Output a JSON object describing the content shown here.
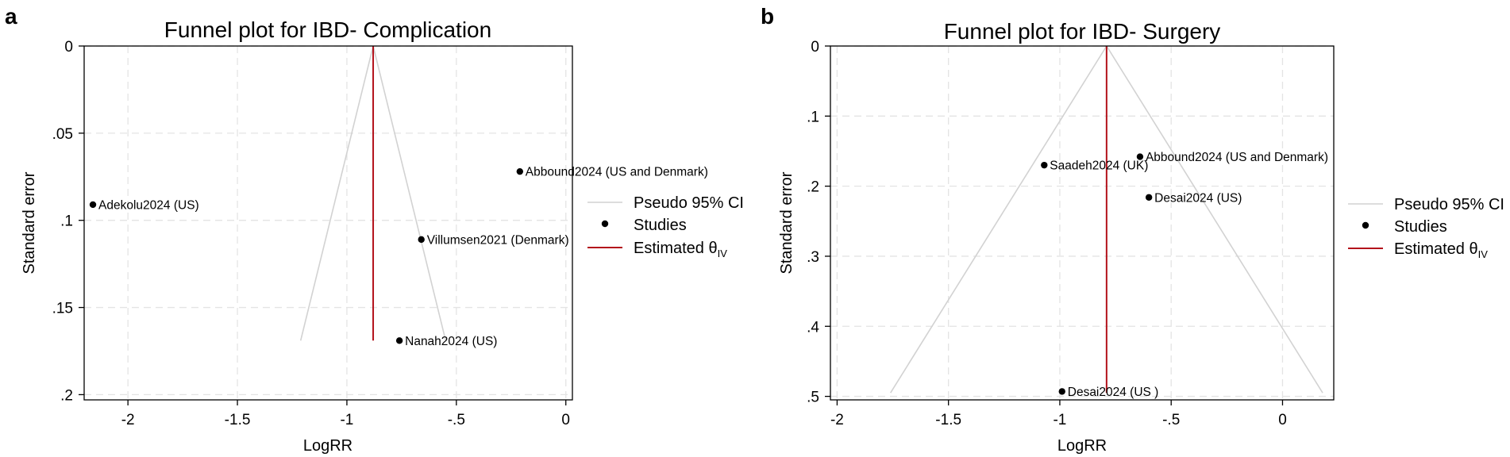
{
  "panels": [
    {
      "letter": "a",
      "colors": {
        "pseudo_ci": "#d2d2d2",
        "studies": "#000000",
        "estimate": "#b3121b"
      },
      "legend": {
        "placement": "right",
        "entries": [
          "Pseudo 95% CI",
          "Studies",
          "Estimated θ",
          "IV"
        ]
      },
      "chart_data": {
        "type": "scatter",
        "title": "Funnel plot for IBD- Complication",
        "xlabel": "LogRR",
        "ylabel": "Standard error",
        "xlim": [
          -2.2,
          0.03
        ],
        "ylim": [
          0,
          0.203
        ],
        "y_reversed": true,
        "grid": true,
        "x_ticks": [
          -2,
          -1.5,
          -1,
          -0.5,
          0
        ],
        "x_tick_labels": [
          "-2",
          "-1.5",
          "-1",
          "-.5",
          "0"
        ],
        "y_ticks": [
          0,
          0.05,
          0.1,
          0.15,
          0.2
        ],
        "y_tick_labels": [
          "0",
          ".05",
          ".1",
          ".15",
          ".2"
        ],
        "estimate": {
          "x": -0.88,
          "se_max": 0.169
        },
        "pseudo_ci": {
          "apex_x": -0.88,
          "se_max": 0.169
        },
        "studies": [
          {
            "label": "Abbound2024 (US and Denmark)",
            "x": -0.21,
            "se": 0.072
          },
          {
            "label": "Adekolu2024 (US)",
            "x": -2.16,
            "se": 0.091
          },
          {
            "label": "Villumsen2021 (Denmark)",
            "x": -0.66,
            "se": 0.111
          },
          {
            "label": "Nanah2024 (US)",
            "x": -0.76,
            "se": 0.169
          }
        ]
      }
    },
    {
      "letter": "b",
      "colors": {
        "pseudo_ci": "#d2d2d2",
        "studies": "#000000",
        "estimate": "#b3121b"
      },
      "legend": {
        "placement": "right",
        "entries": [
          "Pseudo 95% CI",
          "Studies",
          "Estimated θ",
          "IV"
        ]
      },
      "chart_data": {
        "type": "scatter",
        "title": "Funnel plot for IBD- Surgery",
        "xlabel": "LogRR",
        "ylabel": "Standard error",
        "xlim": [
          -2.03,
          0.23
        ],
        "ylim": [
          0,
          0.505
        ],
        "y_reversed": true,
        "grid": true,
        "x_ticks": [
          -2,
          -1.5,
          -1,
          -0.5,
          0
        ],
        "x_tick_labels": [
          "-2",
          "-1.5",
          "-1",
          "-.5",
          "0"
        ],
        "y_ticks": [
          0,
          0.1,
          0.2,
          0.3,
          0.4,
          0.5
        ],
        "y_tick_labels": [
          "0",
          ".1",
          ".2",
          ".3",
          ".4",
          ".5"
        ],
        "estimate": {
          "x": -0.79,
          "se_max": 0.495
        },
        "pseudo_ci": {
          "apex_x": -0.79,
          "se_max": 0.495
        },
        "studies": [
          {
            "label": "Abbound2024 (US and Denmark)",
            "x": -0.64,
            "se": 0.158
          },
          {
            "label": "Saadeh2024 (UK)",
            "x": -1.07,
            "se": 0.17
          },
          {
            "label": "Desai2024 (US)",
            "x": -0.6,
            "se": 0.216
          },
          {
            "label": "Desai2024 (US )",
            "x": -0.99,
            "se": 0.493
          }
        ]
      }
    }
  ]
}
